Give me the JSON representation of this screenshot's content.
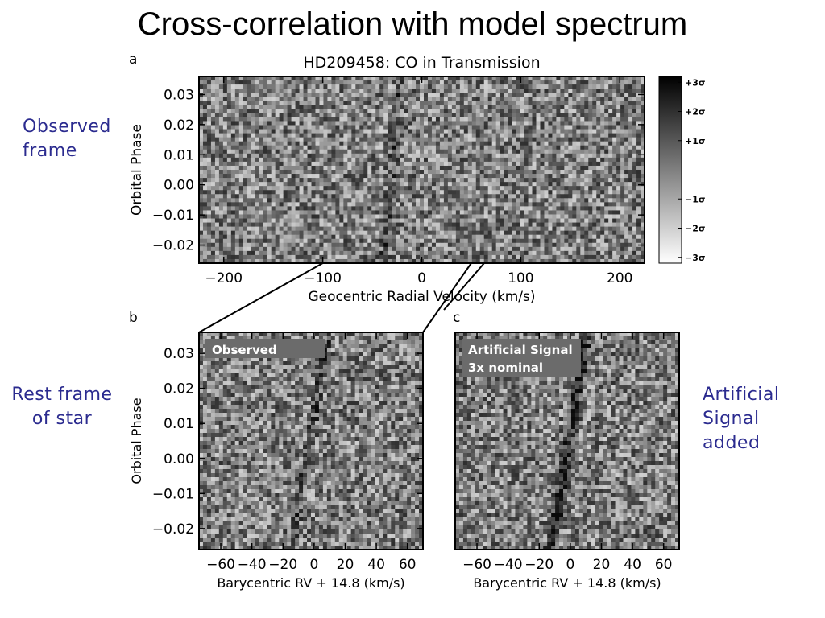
{
  "slide": {
    "title": "Cross-correlation with model spectrum",
    "notes": {
      "observed_frame": [
        "Observed",
        "frame"
      ],
      "rest_frame": [
        "Rest frame",
        "of star"
      ],
      "artificial": [
        "Artificial",
        "Signal",
        "added"
      ]
    },
    "panel_letters": {
      "a": "a",
      "b": "b",
      "c": "c"
    }
  },
  "chart_data": [
    {
      "type": "heatmap",
      "panel": "a",
      "title": "HD209458: CO in Transmission",
      "xlabel": "Geocentric Radial Velocity (km/s)",
      "ylabel": "Orbital Phase",
      "xlim": [
        -225,
        225
      ],
      "ylim": [
        -0.026,
        0.036
      ],
      "xticks": [
        -200,
        -100,
        0,
        100,
        200
      ],
      "xtick_labels": [
        "−200",
        "−100",
        "0",
        "100",
        "200"
      ],
      "yticks": [
        0.03,
        0.02,
        0.01,
        0.0,
        -0.01,
        -0.02
      ],
      "ytick_labels": [
        "0.03",
        "0.02",
        "0.01",
        "0.00",
        "−0.01",
        "−0.02"
      ],
      "colorbar": {
        "labels": [
          "+3σ",
          "+2σ",
          "+1σ",
          "−1σ",
          "−2σ",
          "−3σ"
        ],
        "values": [
          3,
          2,
          1,
          -1,
          -2,
          -3
        ],
        "range": [
          -3.2,
          3.2
        ],
        "colors": [
          "#000000",
          "#ffffff"
        ]
      },
      "zoom_range_x": [
        -100,
        50
      ]
    },
    {
      "type": "heatmap",
      "panel": "b",
      "label": "Observed",
      "xlabel": "Barycentric RV + 14.8 (km/s)",
      "ylabel": "Orbital Phase",
      "xlim": [
        -74,
        70
      ],
      "ylim": [
        -0.026,
        0.036
      ],
      "xticks": [
        -60,
        -40,
        -20,
        0,
        20,
        40,
        60
      ],
      "xtick_labels": [
        "−60",
        "−40",
        "−20",
        "0",
        "20",
        "40",
        "60"
      ],
      "yticks": [
        0.03,
        0.02,
        0.01,
        0.0,
        -0.01,
        -0.02
      ],
      "ytick_labels": [
        "0.03",
        "0.02",
        "0.01",
        "0.00",
        "−0.01",
        "−0.02"
      ]
    },
    {
      "type": "heatmap",
      "panel": "c",
      "label": [
        "Artificial Signal",
        "3x nominal"
      ],
      "xlabel": "Barycentric RV + 14.8 (km/s)",
      "xlim": [
        -74,
        70
      ],
      "ylim": [
        -0.026,
        0.036
      ],
      "xticks": [
        -60,
        -40,
        -20,
        0,
        20,
        40,
        60
      ],
      "xtick_labels": [
        "−60",
        "−40",
        "−20",
        "0",
        "20",
        "40",
        "60"
      ]
    }
  ]
}
